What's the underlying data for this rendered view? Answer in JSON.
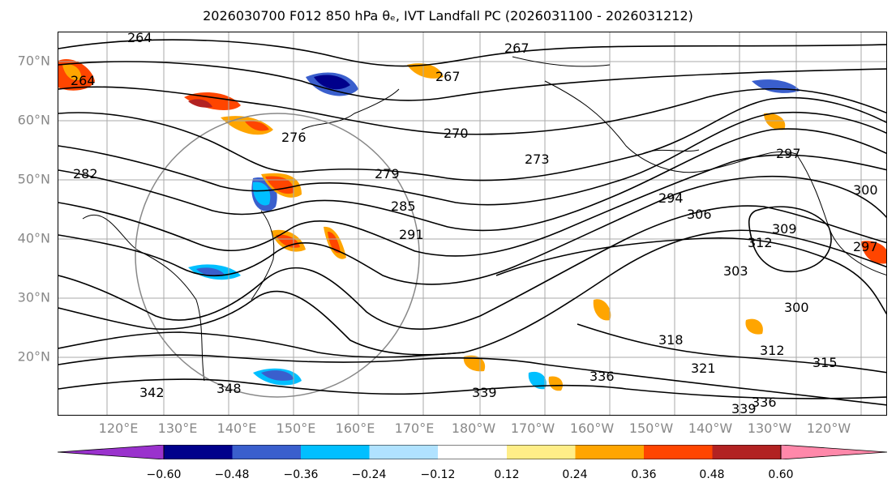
{
  "title": "2026030700 F012 850 hPa θₑ, IVT Landfall PC (2026031100 - 2026031212)",
  "lat_labels": [
    "70°N",
    "60°N",
    "50°N",
    "40°N",
    "30°N",
    "20°N"
  ],
  "lon_labels": [
    "120°E",
    "130°E",
    "140°E",
    "150°E",
    "160°E",
    "170°E",
    "180°W",
    "170°W",
    "160°W",
    "150°W",
    "140°W",
    "130°W",
    "120°W"
  ],
  "contour_labels": [
    "267",
    "267",
    "270",
    "273",
    "279",
    "285",
    "291",
    "294",
    "297",
    "300",
    "300",
    "303",
    "306",
    "309",
    "312",
    "312",
    "315",
    "318",
    "321",
    "336",
    "336",
    "339",
    "339",
    "342",
    "348",
    "264",
    "264",
    "276",
    "282",
    "297"
  ],
  "colorbar": {
    "ticks": [
      "−0.60",
      "−0.48",
      "−0.36",
      "−0.24",
      "−0.12",
      "0.12",
      "0.24",
      "0.36",
      "0.48",
      "0.60"
    ],
    "colors": [
      "#9a32cd",
      "#00008b",
      "#3a5fcd",
      "#00bfff",
      "#b0e2ff",
      "#ffffff",
      "#ffee88",
      "#ffa500",
      "#ff4500",
      "#b22222",
      "#ff88aa"
    ]
  }
}
